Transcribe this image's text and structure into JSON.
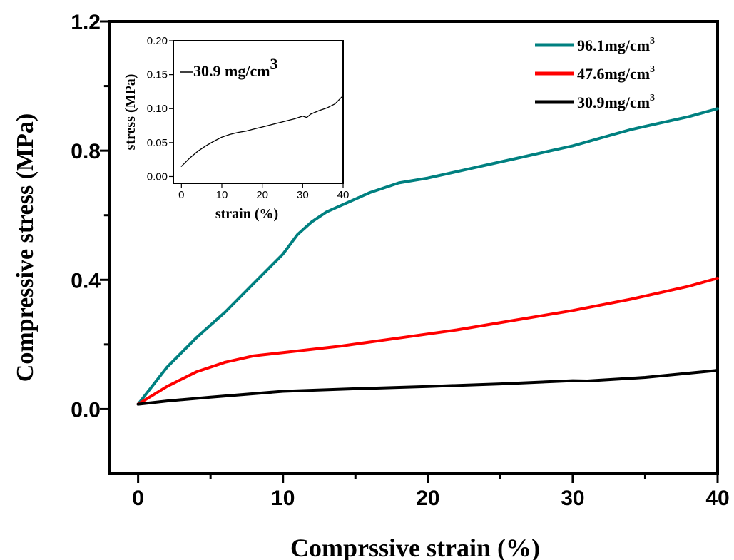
{
  "chart_data": [
    {
      "type": "line",
      "xlabel": "Comprssive strain (%)",
      "ylabel": "Compressive stress (MPa)",
      "xlim": [
        -2,
        40
      ],
      "ylim": [
        -0.2,
        1.2
      ],
      "xticks": [
        "0",
        "10",
        "20",
        "30",
        "40"
      ],
      "yticks": [
        "0.0",
        "0.4",
        "0.8",
        "1.2"
      ],
      "legend_position": "top-right",
      "series": [
        {
          "name": "96.1mg/cm",
          "name_sup": "3",
          "color": "#008080",
          "x": [
            0,
            2,
            4,
            6,
            8,
            10,
            11,
            12,
            13,
            14,
            16,
            18,
            20,
            22,
            24,
            26,
            28,
            30,
            32,
            34,
            36,
            38,
            40
          ],
          "y": [
            0.015,
            0.13,
            0.22,
            0.3,
            0.39,
            0.48,
            0.54,
            0.58,
            0.61,
            0.63,
            0.67,
            0.7,
            0.715,
            0.735,
            0.755,
            0.775,
            0.795,
            0.815,
            0.84,
            0.865,
            0.885,
            0.905,
            0.93
          ]
        },
        {
          "name": "47.6mg/cm",
          "name_sup": "3",
          "color": "#ff0000",
          "x": [
            0,
            2,
            4,
            6,
            8,
            10,
            14,
            18,
            22,
            26,
            30,
            34,
            38,
            40
          ],
          "y": [
            0.015,
            0.07,
            0.115,
            0.145,
            0.165,
            0.175,
            0.195,
            0.22,
            0.245,
            0.275,
            0.305,
            0.34,
            0.38,
            0.405
          ]
        },
        {
          "name": "30.9mg/cm",
          "name_sup": "3",
          "color": "#000000",
          "x": [
            0,
            2,
            5,
            10,
            15,
            20,
            25,
            30,
            31,
            35,
            40
          ],
          "y": [
            0.015,
            0.025,
            0.037,
            0.055,
            0.063,
            0.07,
            0.078,
            0.088,
            0.087,
            0.098,
            0.12
          ]
        }
      ]
    },
    {
      "type": "line",
      "xlabel": "strain (%)",
      "ylabel": "stress (MPa)",
      "xlim": [
        -2,
        40
      ],
      "ylim": [
        -0.01,
        0.2
      ],
      "xticks": [
        "0",
        "10",
        "20",
        "30",
        "40"
      ],
      "yticks": [
        "0.00",
        "0.05",
        "0.10",
        "0.15",
        "0.20"
      ],
      "legend_position": "top-left",
      "series": [
        {
          "name": "30.9 mg/cm",
          "name_sup": "3",
          "color": "#000000",
          "x": [
            0,
            2,
            4,
            6,
            8,
            10,
            12,
            14,
            16,
            18,
            20,
            22,
            24,
            26,
            28,
            30,
            31,
            32,
            34,
            36,
            38,
            40
          ],
          "y": [
            0.015,
            0.027,
            0.037,
            0.045,
            0.052,
            0.058,
            0.062,
            0.065,
            0.067,
            0.07,
            0.073,
            0.076,
            0.079,
            0.082,
            0.085,
            0.089,
            0.087,
            0.092,
            0.097,
            0.101,
            0.107,
            0.119
          ]
        }
      ]
    }
  ]
}
